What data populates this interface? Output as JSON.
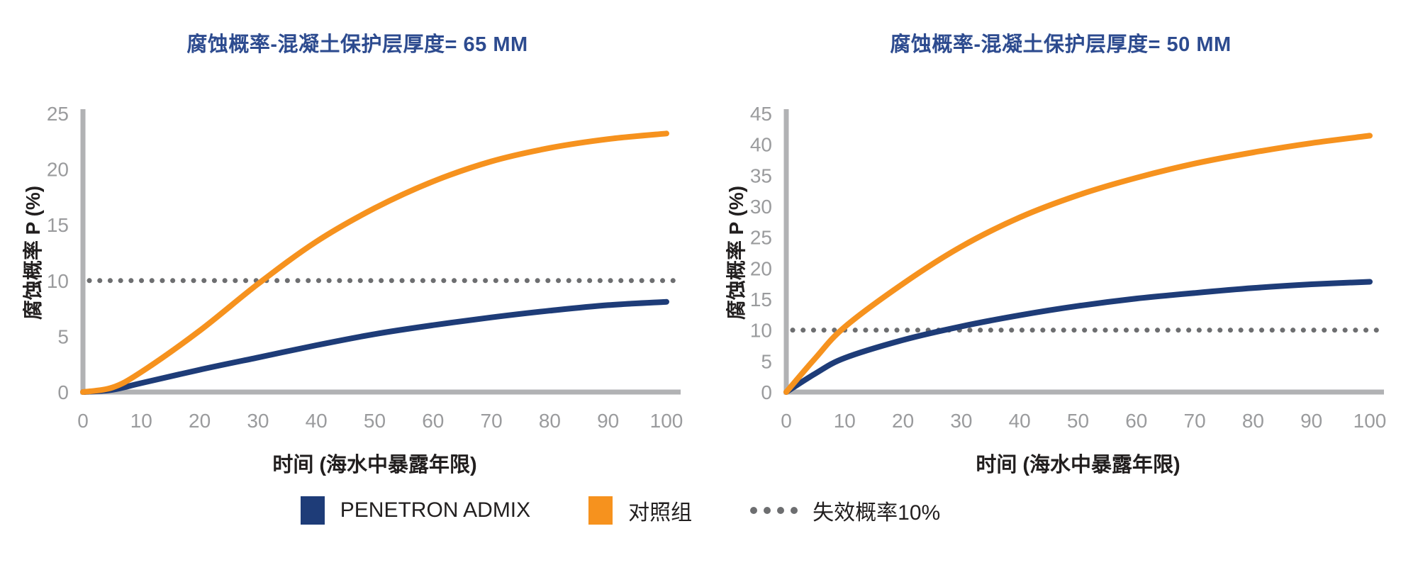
{
  "colors": {
    "title_blue": "#2D4B8F",
    "axis_gray": "#B1B2B4",
    "tick_gray": "#9A9B9D",
    "label_black": "#221F1F",
    "penetron_blue": "#1E3C78",
    "control_orange": "#F6921E",
    "dotted_gray": "#6D6E70"
  },
  "legend": {
    "items": [
      {
        "label": "PENETRON ADMIX",
        "marker": "swatch",
        "color": "#1E3C78"
      },
      {
        "label": "对照组",
        "marker": "swatch",
        "color": "#F6921E"
      },
      {
        "label": "失效概率10%",
        "marker": "dots",
        "color": "#6D6E70"
      }
    ]
  },
  "chart_data": [
    {
      "type": "line",
      "title": "腐蚀概率-混凝土保护层厚度= 65 MM",
      "xlabel": "时间 (海水中暴露年限)",
      "ylabel": "腐蚀概率 P (%)",
      "xlim": [
        0,
        100
      ],
      "ylim": [
        0,
        25
      ],
      "xticks": [
        0,
        10,
        20,
        30,
        40,
        50,
        60,
        70,
        80,
        90,
        100
      ],
      "yticks": [
        0,
        5,
        10,
        15,
        20,
        25
      ],
      "grid": false,
      "legend_position": "bottom-shared",
      "x": [
        0,
        5,
        10,
        20,
        30,
        40,
        50,
        60,
        70,
        80,
        90,
        100
      ],
      "series": [
        {
          "name": "PENETRON ADMIX",
          "color": "#1E3C78",
          "values": [
            0,
            0.2,
            0.8,
            2.0,
            3.1,
            4.2,
            5.2,
            6.0,
            6.7,
            7.3,
            7.8,
            8.1
          ]
        },
        {
          "name": "对照组",
          "color": "#F6921E",
          "values": [
            0,
            0.4,
            1.8,
            5.5,
            9.7,
            13.5,
            16.5,
            18.9,
            20.7,
            21.9,
            22.7,
            23.2
          ]
        }
      ],
      "threshold": {
        "value": 10,
        "label": "失效概率10%"
      }
    },
    {
      "type": "line",
      "title": "腐蚀概率-混凝土保护层厚度= 50 MM",
      "xlabel": "时间 (海水中暴露年限)",
      "ylabel": "腐蚀概率 P (%)",
      "xlim": [
        0,
        100
      ],
      "ylim": [
        0,
        45
      ],
      "xticks": [
        0,
        10,
        20,
        30,
        40,
        50,
        60,
        70,
        80,
        90,
        100
      ],
      "yticks": [
        0,
        5,
        10,
        15,
        20,
        25,
        30,
        35,
        40,
        45
      ],
      "grid": false,
      "legend_position": "bottom-shared",
      "x": [
        0,
        5,
        10,
        20,
        30,
        40,
        50,
        60,
        70,
        80,
        90,
        100
      ],
      "series": [
        {
          "name": "PENETRON ADMIX",
          "color": "#1E3C78",
          "values": [
            0,
            3.0,
            5.5,
            8.4,
            10.6,
            12.4,
            13.9,
            15.1,
            16.0,
            16.8,
            17.4,
            17.8
          ]
        },
        {
          "name": "对照组",
          "color": "#F6921E",
          "values": [
            0,
            5.5,
            10.5,
            17.5,
            23.5,
            28.2,
            31.8,
            34.6,
            36.9,
            38.7,
            40.2,
            41.4
          ]
        }
      ],
      "threshold": {
        "value": 10,
        "label": "失效概率10%"
      }
    }
  ]
}
